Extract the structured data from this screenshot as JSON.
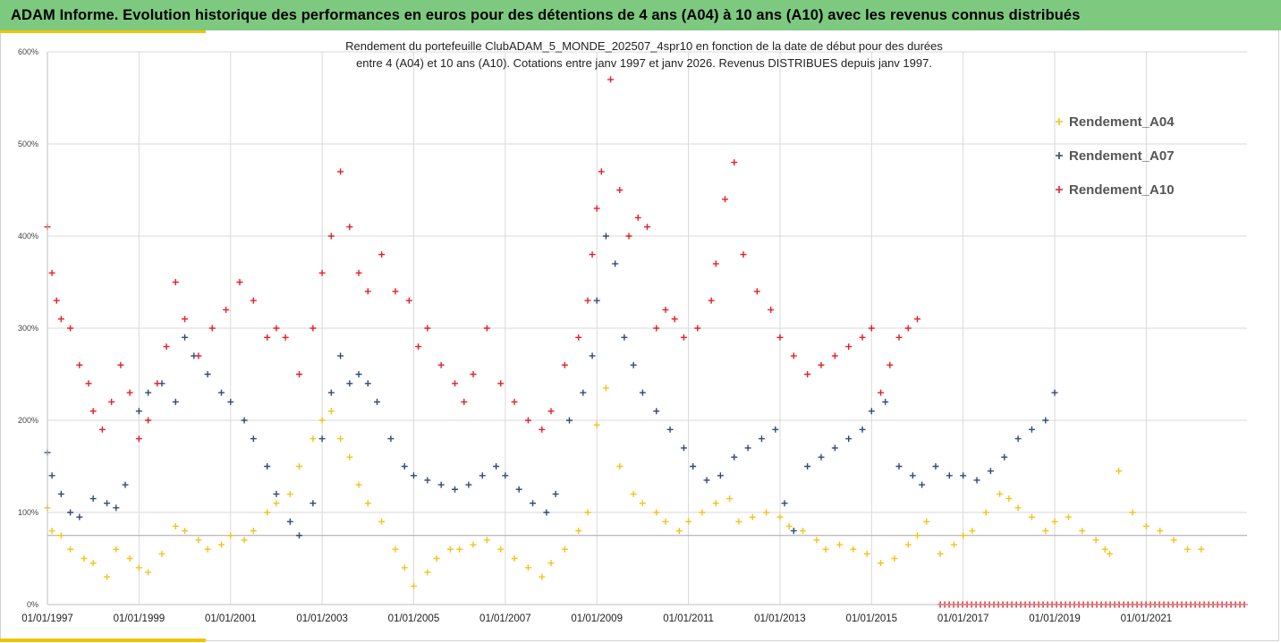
{
  "header": {
    "title": "ADAM Informe. Evolution historique des performances en euros pour des détentions de 4 ans (A04) à 10 ans (A10) avec les revenus connus distribués"
  },
  "colors": {
    "banner": "#7dc97f",
    "accent": "#f2c200",
    "A04": "#f5c21a",
    "A07": "#2f4a7a",
    "A10": "#e81e25"
  },
  "chart_data": {
    "type": "scatter",
    "marker": "plus",
    "title_lines": [
      "Rendement du portefeuille ClubADAM_5_MONDE_202507_4spr10  en fonction de la date de début pour des durées",
      "entre 4 (A04) et 10 ans (A10). Cotations entre janv 1997 et janv 2026. Revenus DISTRIBUES depuis janv 1997."
    ],
    "xlabel": "",
    "ylabel": "",
    "xlim": [
      1997.0,
      2023.2
    ],
    "ylim": [
      0,
      600
    ],
    "grid": true,
    "legend_position": "top-right",
    "x_ticks": [
      {
        "x": 1997,
        "label": "01/01/1997"
      },
      {
        "x": 1999,
        "label": "01/01/1999"
      },
      {
        "x": 2001,
        "label": "01/01/2001"
      },
      {
        "x": 2003,
        "label": "01/01/2003"
      },
      {
        "x": 2005,
        "label": "01/01/2005"
      },
      {
        "x": 2007,
        "label": "01/01/2007"
      },
      {
        "x": 2009,
        "label": "01/01/2009"
      },
      {
        "x": 2011,
        "label": "01/01/2011"
      },
      {
        "x": 2013,
        "label": "01/01/2013"
      },
      {
        "x": 2015,
        "label": "01/01/2015"
      },
      {
        "x": 2017,
        "label": "01/01/2017"
      },
      {
        "x": 2019,
        "label": "01/01/2019"
      },
      {
        "x": 2021,
        "label": "01/01/2021"
      }
    ],
    "y_ticks": [
      {
        "y": 0,
        "label": "0%"
      },
      {
        "y": 100,
        "label": "100%"
      },
      {
        "y": 200,
        "label": "200%"
      },
      {
        "y": 300,
        "label": "300%"
      },
      {
        "y": 400,
        "label": "400%"
      },
      {
        "y": 500,
        "label": "500%"
      },
      {
        "y": 600,
        "label": "600%"
      }
    ],
    "reference_line_y": 75,
    "series": [
      {
        "name": "Rendement_A04",
        "color": "#f5c21a",
        "x": [
          1997.0,
          1997.1,
          1997.3,
          1997.5,
          1997.8,
          1998.0,
          1998.3,
          1998.5,
          1998.8,
          1999.0,
          1999.2,
          1999.5,
          1999.8,
          2000.0,
          2000.3,
          2000.5,
          2000.8,
          2001.0,
          2001.3,
          2001.5,
          2001.8,
          2002.0,
          2002.3,
          2002.5,
          2002.8,
          2003.0,
          2003.2,
          2003.4,
          2003.6,
          2003.8,
          2004.0,
          2004.3,
          2004.6,
          2004.8,
          2005.0,
          2005.3,
          2005.5,
          2005.8,
          2006.0,
          2006.3,
          2006.6,
          2006.9,
          2007.2,
          2007.5,
          2007.8,
          2008.0,
          2008.3,
          2008.6,
          2008.8,
          2009.0,
          2009.2,
          2009.5,
          2009.8,
          2010.0,
          2010.3,
          2010.5,
          2010.8,
          2011.0,
          2011.3,
          2011.6,
          2011.9,
          2012.1,
          2012.4,
          2012.7,
          2013.0,
          2013.2,
          2013.5,
          2013.8,
          2014.0,
          2014.3,
          2014.6,
          2014.9,
          2015.2,
          2015.5,
          2015.8,
          2016.0,
          2016.2,
          2016.5,
          2016.8,
          2017.0,
          2017.2,
          2017.5,
          2017.8,
          2018.0,
          2018.2,
          2018.5,
          2018.8,
          2019.0,
          2019.3,
          2019.6,
          2019.9,
          2020.1,
          2020.2,
          2020.4,
          2020.7,
          2021.0,
          2021.3,
          2021.6,
          2021.9,
          2022.2
        ],
        "y": [
          105,
          80,
          75,
          60,
          50,
          45,
          30,
          60,
          50,
          40,
          35,
          55,
          85,
          80,
          70,
          60,
          65,
          75,
          70,
          80,
          100,
          110,
          120,
          150,
          180,
          200,
          210,
          180,
          160,
          130,
          110,
          90,
          60,
          40,
          20,
          35,
          50,
          60,
          60,
          65,
          70,
          60,
          50,
          40,
          30,
          45,
          60,
          80,
          100,
          195,
          235,
          150,
          120,
          110,
          100,
          90,
          80,
          90,
          100,
          110,
          115,
          90,
          95,
          100,
          95,
          85,
          80,
          70,
          60,
          65,
          60,
          55,
          45,
          50,
          65,
          75,
          90,
          55,
          65,
          75,
          80,
          100,
          120,
          115,
          105,
          95,
          80,
          90,
          95,
          80,
          70,
          60,
          55,
          145,
          100,
          85,
          80,
          70,
          60,
          60
        ]
      },
      {
        "name": "Rendement_A07",
        "color": "#2f4a7a",
        "x": [
          1997.0,
          1997.1,
          1997.3,
          1997.5,
          1997.7,
          1998.0,
          1998.3,
          1998.5,
          1998.7,
          1999.0,
          1999.2,
          1999.5,
          1999.8,
          2000.0,
          2000.2,
          2000.5,
          2000.8,
          2001.0,
          2001.3,
          2001.5,
          2001.8,
          2002.0,
          2002.3,
          2002.5,
          2002.8,
          2003.0,
          2003.2,
          2003.4,
          2003.6,
          2003.8,
          2004.0,
          2004.2,
          2004.5,
          2004.8,
          2005.0,
          2005.3,
          2005.6,
          2005.9,
          2006.2,
          2006.5,
          2006.8,
          2007.0,
          2007.3,
          2007.6,
          2007.9,
          2008.1,
          2008.4,
          2008.7,
          2008.9,
          2009.0,
          2009.2,
          2009.4,
          2009.6,
          2009.8,
          2010.0,
          2010.3,
          2010.6,
          2010.9,
          2011.1,
          2011.4,
          2011.7,
          2012.0,
          2012.3,
          2012.6,
          2012.9,
          2013.1,
          2013.3,
          2013.6,
          2013.9,
          2014.2,
          2014.5,
          2014.8,
          2015.0,
          2015.3,
          2015.6,
          2015.9,
          2016.1,
          2016.4,
          2016.7,
          2017.0,
          2017.3,
          2017.6,
          2017.9,
          2018.2,
          2018.5,
          2018.8,
          2019.0
        ],
        "y": [
          165,
          140,
          120,
          100,
          95,
          115,
          110,
          105,
          130,
          210,
          230,
          240,
          220,
          290,
          270,
          250,
          230,
          220,
          200,
          180,
          150,
          120,
          90,
          75,
          110,
          180,
          230,
          270,
          240,
          250,
          240,
          220,
          180,
          150,
          140,
          135,
          130,
          125,
          130,
          140,
          150,
          140,
          125,
          110,
          100,
          120,
          200,
          230,
          270,
          330,
          400,
          370,
          290,
          260,
          230,
          210,
          190,
          170,
          150,
          135,
          140,
          160,
          170,
          180,
          190,
          110,
          80,
          150,
          160,
          170,
          180,
          190,
          210,
          220,
          150,
          140,
          130,
          150,
          140,
          140,
          135,
          145,
          160,
          180,
          190,
          200,
          230
        ]
      },
      {
        "name": "Rendement_A10",
        "color": "#e81e25",
        "x": [
          1997.0,
          1997.1,
          1997.2,
          1997.3,
          1997.5,
          1997.7,
          1997.9,
          1998.0,
          1998.2,
          1998.4,
          1998.6,
          1998.8,
          1999.0,
          1999.2,
          1999.4,
          1999.6,
          1999.8,
          2000.0,
          2000.3,
          2000.6,
          2000.9,
          2001.2,
          2001.5,
          2001.8,
          2002.0,
          2002.2,
          2002.5,
          2002.8,
          2003.0,
          2003.2,
          2003.4,
          2003.6,
          2003.8,
          2004.0,
          2004.3,
          2004.6,
          2004.9,
          2005.1,
          2005.3,
          2005.6,
          2005.9,
          2006.1,
          2006.3,
          2006.6,
          2006.9,
          2007.2,
          2007.5,
          2007.8,
          2008.0,
          2008.3,
          2008.6,
          2008.8,
          2008.9,
          2009.0,
          2009.1,
          2009.3,
          2009.5,
          2009.7,
          2009.9,
          2010.1,
          2010.3,
          2010.5,
          2010.7,
          2010.9,
          2011.2,
          2011.5,
          2011.6,
          2011.8,
          2012.0,
          2012.2,
          2012.5,
          2012.8,
          2013.0,
          2013.3,
          2013.6,
          2013.9,
          2014.2,
          2014.5,
          2014.8,
          2015.0,
          2015.2,
          2015.4,
          2015.6,
          2015.8,
          2016.0
        ],
        "y": [
          410,
          360,
          330,
          310,
          300,
          260,
          240,
          210,
          190,
          220,
          260,
          230,
          180,
          200,
          240,
          280,
          350,
          310,
          270,
          300,
          320,
          350,
          330,
          290,
          300,
          290,
          250,
          300,
          360,
          400,
          470,
          410,
          360,
          340,
          380,
          340,
          330,
          280,
          300,
          260,
          240,
          220,
          250,
          300,
          240,
          220,
          200,
          190,
          210,
          260,
          290,
          330,
          380,
          430,
          470,
          570,
          450,
          400,
          420,
          410,
          300,
          320,
          310,
          290,
          300,
          330,
          370,
          440,
          480,
          380,
          340,
          320,
          290,
          270,
          250,
          260,
          270,
          280,
          290,
          300,
          230,
          260,
          290,
          300,
          310
        ]
      }
    ],
    "extra_series_zero_band": {
      "color": "#e81e25",
      "x_start": 2016.5,
      "x_end": 2023.2,
      "y": 0
    }
  }
}
